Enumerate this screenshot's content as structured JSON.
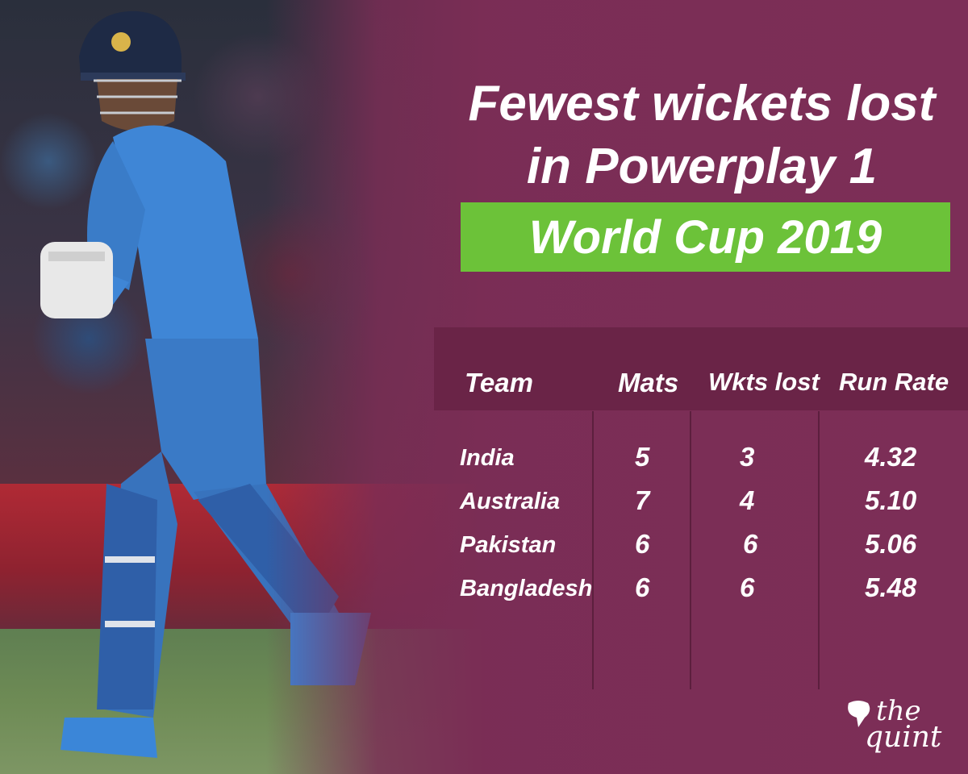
{
  "header": {
    "title_line1": "Fewest wickets lost",
    "title_line2": "in Powerplay 1",
    "subtitle": "World Cup 2019"
  },
  "chart_data": {
    "type": "table",
    "title": "Fewest wickets lost in Powerplay 1",
    "subtitle": "World Cup 2019",
    "columns": [
      "Team",
      "Mats",
      "Wkts lost",
      "Run Rate"
    ],
    "rows": [
      {
        "team": "India",
        "mats": "5",
        "wkts": "3",
        "rr": "4.32"
      },
      {
        "team": "Australia",
        "mats": "7",
        "wkts": "4",
        "rr": "5.10"
      },
      {
        "team": "Pakistan",
        "mats": "6",
        "wkts": "6",
        "rr": "5.06"
      },
      {
        "team": "Bangladesh",
        "mats": "6",
        "wkts": "6",
        "rr": "5.48"
      }
    ]
  },
  "logo": {
    "line1": "the",
    "line2": "quint"
  },
  "colors": {
    "background": "#7a2d55",
    "accent_green": "#6cc239",
    "header_band": "#6a2447",
    "jersey_blue": "#3f86d6"
  },
  "icons": {
    "photo": "cricket-batsman-photo",
    "logo": "the-quint-logo"
  }
}
